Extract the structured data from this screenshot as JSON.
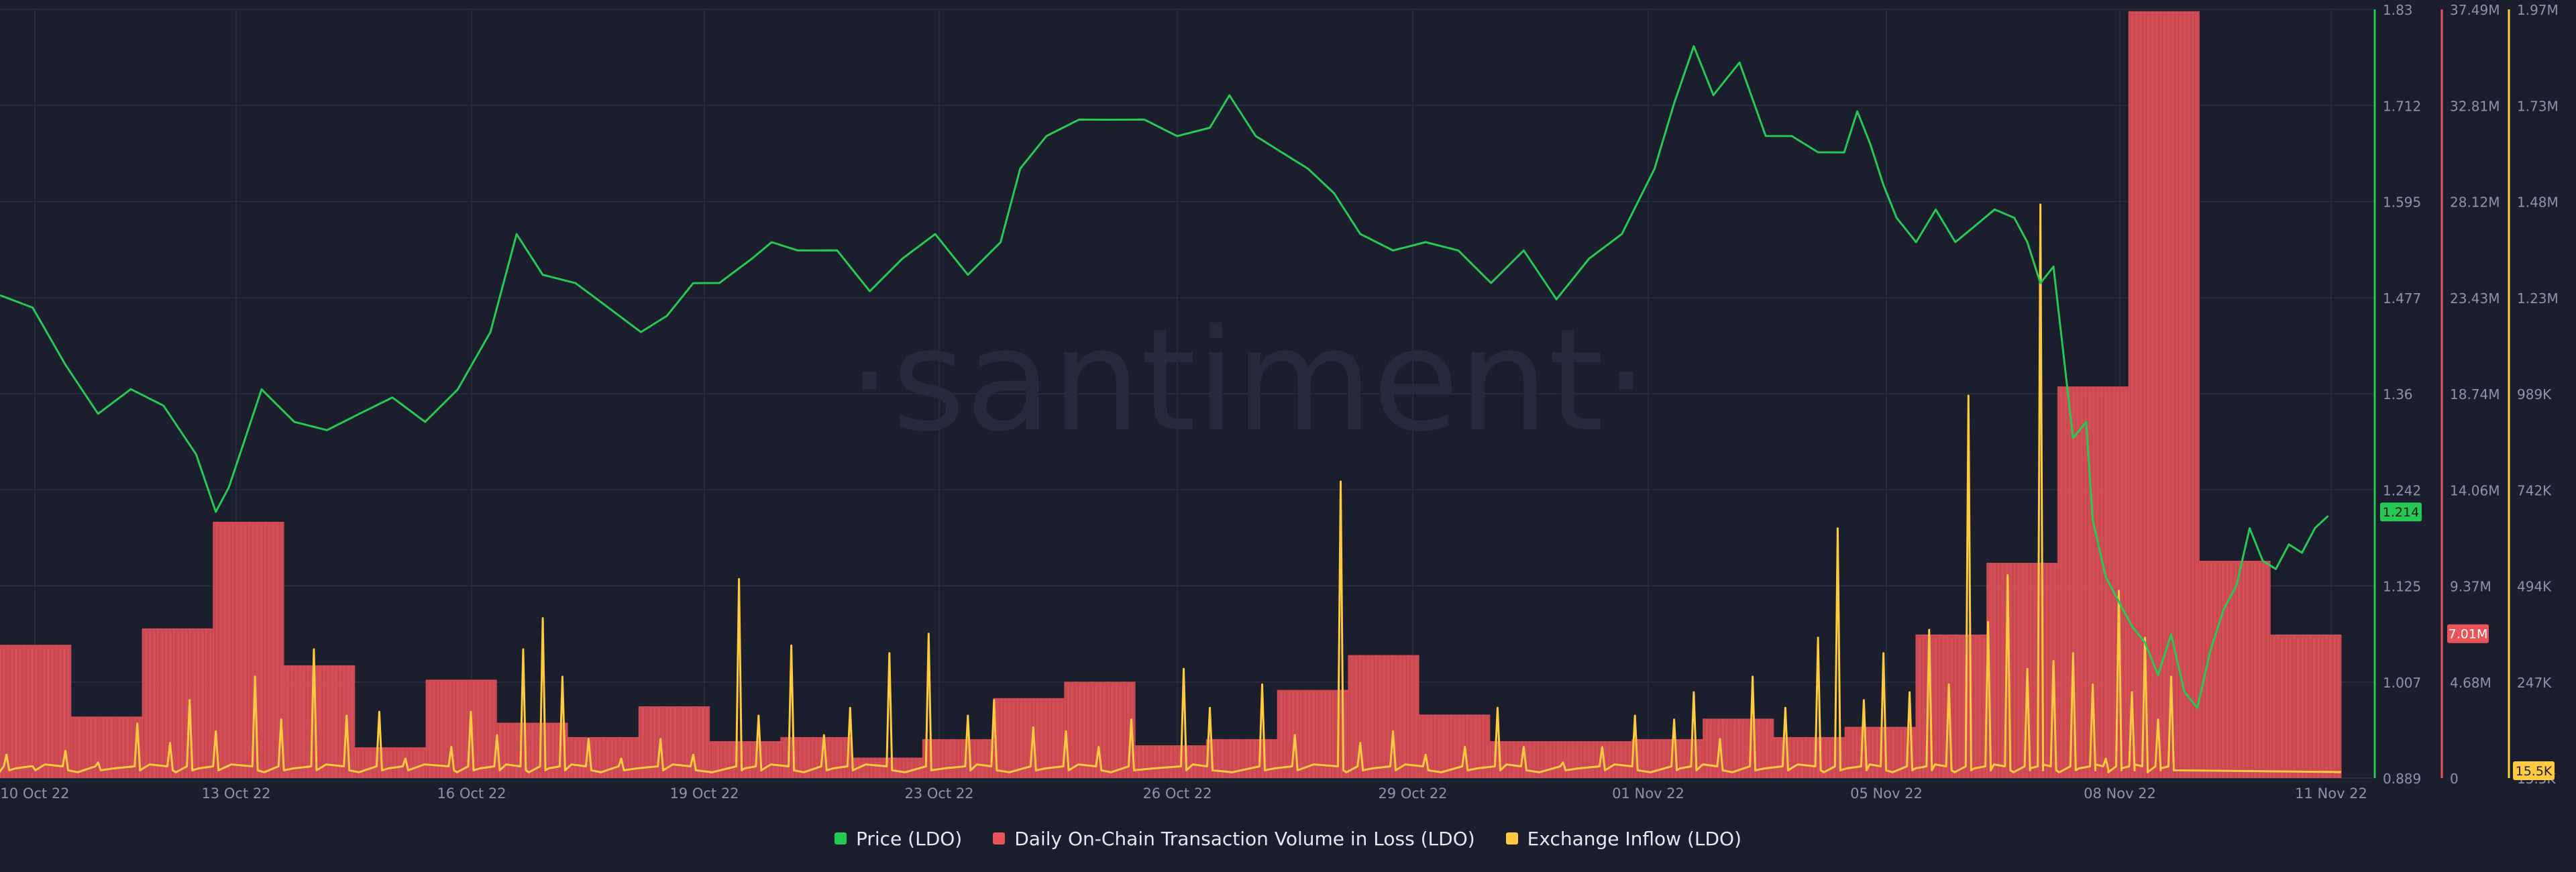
{
  "watermark": "·santiment·",
  "colors": {
    "background": "#1b1e2c",
    "price": "#26c953",
    "volume_loss": "#e9545b",
    "inflow": "#ffc940",
    "grid": "#2a2f40",
    "axis_text": "#8d93a8"
  },
  "legend": [
    {
      "label": "Price (LDO)",
      "color": "#26c953"
    },
    {
      "label": "Daily On-Chain Transaction Volume in Loss (LDO)",
      "color": "#e9545b"
    },
    {
      "label": "Exchange Inflow (LDO)",
      "color": "#ffc940"
    }
  ],
  "chart_data": {
    "type": "line",
    "x_ticks": [
      "10 Oct 22",
      "13 Oct 22",
      "16 Oct 22",
      "19 Oct 22",
      "23 Oct 22",
      "26 Oct 22",
      "29 Oct 22",
      "01 Nov 22",
      "05 Nov 22",
      "08 Nov 22",
      "11 Nov 22"
    ],
    "x_range": [
      "2022-10-10",
      "2022-11-11"
    ],
    "axes": {
      "price": {
        "ticks": [
          "1.83",
          "1.712",
          "1.595",
          "1.477",
          "1.36",
          "1.242",
          "1.125",
          "1.007",
          "0.889"
        ],
        "min": 0.889,
        "max": 1.83,
        "current_label": "1.214"
      },
      "volume_loss": {
        "ticks": [
          "37.49M",
          "32.81M",
          "28.12M",
          "23.43M",
          "18.74M",
          "14.06M",
          "9.37M",
          "4.68M",
          "0"
        ],
        "min": 0,
        "max": 37.49,
        "unit": "M",
        "current_label": "7.01M"
      },
      "inflow": {
        "ticks": [
          "1.97M",
          "1.73M",
          "1.48M",
          "1.23M",
          "989K",
          "742K",
          "494K",
          "247K",
          "15.5K"
        ],
        "min": 0,
        "max": 1.97,
        "unit": "M",
        "current_label": "15.5K"
      }
    },
    "series": [
      {
        "name": "Price (LDO)",
        "type": "line",
        "axis": "price",
        "points": [
          [
            0.0,
            1.48
          ],
          [
            0.5,
            1.46
          ],
          [
            1.0,
            1.4
          ],
          [
            1.5,
            1.33
          ],
          [
            2.0,
            1.37
          ],
          [
            2.5,
            1.34
          ],
          [
            3.0,
            1.29
          ],
          [
            3.3,
            1.21
          ],
          [
            3.5,
            1.25
          ],
          [
            4.0,
            1.36
          ],
          [
            4.5,
            1.33
          ],
          [
            5.0,
            1.31
          ],
          [
            5.5,
            1.34
          ],
          [
            6.0,
            1.35
          ],
          [
            6.5,
            1.33
          ],
          [
            7.0,
            1.36
          ],
          [
            7.5,
            1.44
          ],
          [
            7.9,
            1.55
          ],
          [
            8.3,
            1.51
          ],
          [
            8.8,
            1.49
          ],
          [
            9.3,
            1.47
          ],
          [
            9.8,
            1.43
          ],
          [
            10.2,
            1.46
          ],
          [
            10.6,
            1.49
          ],
          [
            11.0,
            1.5
          ],
          [
            11.5,
            1.52
          ],
          [
            11.8,
            1.55
          ],
          [
            12.2,
            1.53
          ],
          [
            12.8,
            1.54
          ],
          [
            13.3,
            1.48
          ],
          [
            13.8,
            1.53
          ],
          [
            14.3,
            1.55
          ],
          [
            14.8,
            1.51
          ],
          [
            15.3,
            1.54
          ],
          [
            15.6,
            1.64
          ],
          [
            16.0,
            1.67
          ],
          [
            16.5,
            1.7
          ],
          [
            17.0,
            1.69
          ],
          [
            17.5,
            1.7
          ],
          [
            18.0,
            1.67
          ],
          [
            18.5,
            1.69
          ],
          [
            18.8,
            1.72
          ],
          [
            19.2,
            1.68
          ],
          [
            19.6,
            1.65
          ],
          [
            20.0,
            1.64
          ],
          [
            20.4,
            1.6
          ],
          [
            20.8,
            1.56
          ],
          [
            21.3,
            1.53
          ],
          [
            21.8,
            1.55
          ],
          [
            22.3,
            1.53
          ],
          [
            22.8,
            1.5
          ],
          [
            23.3,
            1.53
          ],
          [
            23.8,
            1.48
          ],
          [
            24.3,
            1.52
          ],
          [
            24.8,
            1.56
          ],
          [
            25.3,
            1.63
          ],
          [
            25.6,
            1.72
          ],
          [
            25.9,
            1.78
          ],
          [
            26.2,
            1.73
          ],
          [
            26.6,
            1.76
          ],
          [
            27.0,
            1.68
          ],
          [
            27.4,
            1.67
          ],
          [
            27.8,
            1.66
          ],
          [
            28.2,
            1.65
          ],
          [
            28.4,
            1.71
          ],
          [
            28.6,
            1.66
          ],
          [
            28.8,
            1.62
          ],
          [
            29.0,
            1.57
          ],
          [
            29.3,
            1.55
          ],
          [
            29.6,
            1.58
          ],
          [
            29.9,
            1.55
          ],
          [
            30.2,
            1.56
          ],
          [
            30.5,
            1.59
          ],
          [
            30.8,
            1.57
          ],
          [
            31.0,
            1.55
          ],
          [
            31.2,
            1.49
          ],
          [
            31.4,
            1.52
          ],
          [
            31.7,
            1.3
          ],
          [
            31.9,
            1.33
          ],
          [
            32.0,
            1.2
          ],
          [
            32.2,
            1.14
          ],
          [
            32.4,
            1.1
          ],
          [
            32.6,
            1.08
          ],
          [
            32.8,
            1.05
          ],
          [
            33.0,
            1.02
          ],
          [
            33.2,
            1.06
          ],
          [
            33.4,
            1.0
          ],
          [
            33.6,
            0.97
          ],
          [
            33.8,
            1.05
          ],
          [
            34.0,
            1.09
          ],
          [
            34.2,
            1.13
          ],
          [
            34.4,
            1.19
          ],
          [
            34.6,
            1.16
          ],
          [
            34.8,
            1.14
          ],
          [
            35.0,
            1.18
          ],
          [
            35.2,
            1.16
          ],
          [
            35.4,
            1.2
          ],
          [
            35.6,
            1.21
          ]
        ]
      },
      {
        "name": "Daily On-Chain Transaction Volume in Loss (LDO)",
        "type": "bar",
        "axis": "volume_loss",
        "bars": [
          [
            0,
            6.5
          ],
          [
            1,
            3.0
          ],
          [
            2,
            7.3
          ],
          [
            3,
            12.5
          ],
          [
            4,
            5.5
          ],
          [
            5,
            1.5
          ],
          [
            6,
            4.8
          ],
          [
            7,
            2.7
          ],
          [
            8,
            2.0
          ],
          [
            9,
            3.5
          ],
          [
            10,
            1.8
          ],
          [
            11,
            2.0
          ],
          [
            12,
            1.0
          ],
          [
            13,
            1.9
          ],
          [
            14,
            3.9
          ],
          [
            15,
            4.7
          ],
          [
            16,
            1.6
          ],
          [
            17,
            1.9
          ],
          [
            18,
            4.3
          ],
          [
            19,
            6.0
          ],
          [
            20,
            3.1
          ],
          [
            21,
            1.8
          ],
          [
            22,
            1.8
          ],
          [
            23,
            1.9
          ],
          [
            24,
            2.9
          ],
          [
            25,
            2.0
          ],
          [
            26,
            2.5
          ],
          [
            27,
            7.0
          ],
          [
            28,
            10.5
          ],
          [
            29,
            19.1
          ],
          [
            30,
            37.4
          ],
          [
            31,
            10.6
          ],
          [
            32,
            7.0
          ]
        ]
      },
      {
        "name": "Exchange Inflow (LDO)",
        "type": "line",
        "axis": "inflow",
        "peaks": [
          [
            0.1,
            0.06
          ],
          [
            0.5,
            0.03
          ],
          [
            1.0,
            0.07
          ],
          [
            1.5,
            0.04
          ],
          [
            2.1,
            0.14
          ],
          [
            2.6,
            0.09
          ],
          [
            2.9,
            0.2
          ],
          [
            3.3,
            0.12
          ],
          [
            3.9,
            0.26
          ],
          [
            4.3,
            0.15
          ],
          [
            4.8,
            0.33
          ],
          [
            5.3,
            0.16
          ],
          [
            5.8,
            0.17
          ],
          [
            6.2,
            0.05
          ],
          [
            6.9,
            0.08
          ],
          [
            7.2,
            0.17
          ],
          [
            7.6,
            0.11
          ],
          [
            8.0,
            0.33
          ],
          [
            8.3,
            0.41
          ],
          [
            8.6,
            0.26
          ],
          [
            9.0,
            0.1
          ],
          [
            9.5,
            0.05
          ],
          [
            10.1,
            0.1
          ],
          [
            10.6,
            0.06
          ],
          [
            11.3,
            0.51
          ],
          [
            11.6,
            0.16
          ],
          [
            12.1,
            0.34
          ],
          [
            12.6,
            0.11
          ],
          [
            13.0,
            0.18
          ],
          [
            13.6,
            0.32
          ],
          [
            14.2,
            0.37
          ],
          [
            14.8,
            0.16
          ],
          [
            15.2,
            0.2
          ],
          [
            15.8,
            0.13
          ],
          [
            16.3,
            0.12
          ],
          [
            16.8,
            0.08
          ],
          [
            17.3,
            0.15
          ],
          [
            18.1,
            0.28
          ],
          [
            18.5,
            0.18
          ],
          [
            19.3,
            0.24
          ],
          [
            19.8,
            0.11
          ],
          [
            20.5,
            0.76
          ],
          [
            20.8,
            0.09
          ],
          [
            21.3,
            0.12
          ],
          [
            21.8,
            0.06
          ],
          [
            22.4,
            0.08
          ],
          [
            22.9,
            0.18
          ],
          [
            23.3,
            0.08
          ],
          [
            23.9,
            0.04
          ],
          [
            24.5,
            0.08
          ],
          [
            25.0,
            0.16
          ],
          [
            25.6,
            0.15
          ],
          [
            25.9,
            0.22
          ],
          [
            26.3,
            0.1
          ],
          [
            26.8,
            0.26
          ],
          [
            27.3,
            0.18
          ],
          [
            27.8,
            0.36
          ],
          [
            28.1,
            0.64
          ],
          [
            28.5,
            0.2
          ],
          [
            28.8,
            0.32
          ],
          [
            29.2,
            0.22
          ],
          [
            29.5,
            0.38
          ],
          [
            29.8,
            0.24
          ],
          [
            30.1,
            0.98
          ],
          [
            30.4,
            0.4
          ],
          [
            30.7,
            0.52
          ],
          [
            31.0,
            0.28
          ],
          [
            31.2,
            1.47
          ],
          [
            31.4,
            0.3
          ],
          [
            31.7,
            0.32
          ],
          [
            32.0,
            0.24
          ],
          [
            32.2,
            0.05
          ],
          [
            32.4,
            0.48
          ],
          [
            32.6,
            0.22
          ],
          [
            32.8,
            0.36
          ],
          [
            33.0,
            0.15
          ],
          [
            33.2,
            0.26
          ]
        ]
      }
    ]
  }
}
